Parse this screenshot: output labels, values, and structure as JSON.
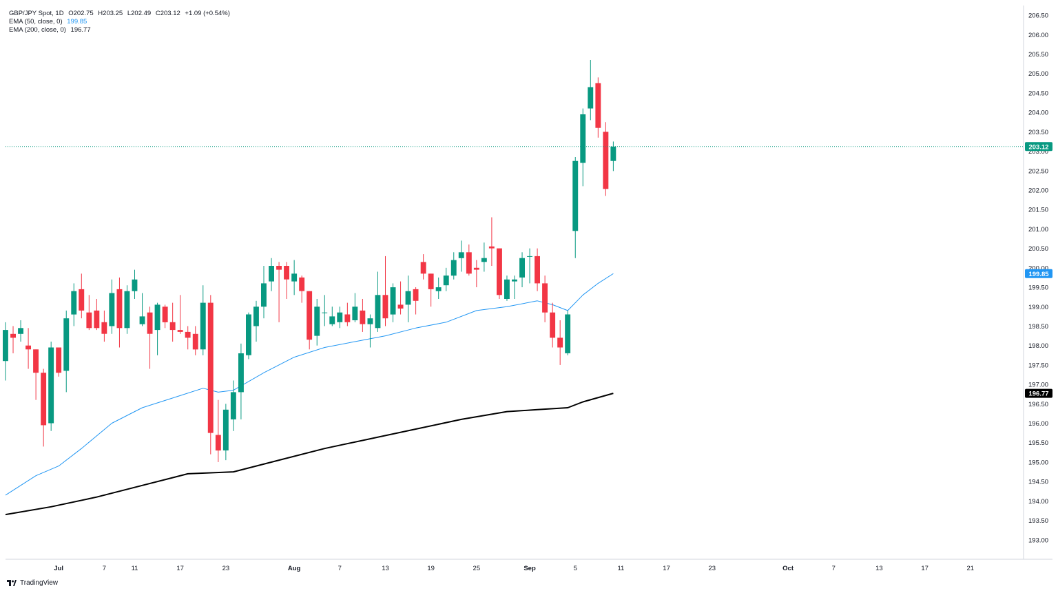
{
  "legend": {
    "symbol": "GBP/JPY Spot, 1D",
    "open": "O202.75",
    "high": "H203.25",
    "low": "L202.49",
    "close": "C203.12",
    "change": "+1.09 (+0.54%)",
    "ema50_label": "EMA (50, close, 0)",
    "ema50_value": "199.85",
    "ema200_label": "EMA (200, close, 0)",
    "ema200_value": "196.77"
  },
  "brand": {
    "name": "TradingView",
    "icon": "tradingview-logo-icon"
  },
  "colors": {
    "up": "#089981",
    "down": "#f23645",
    "ema50": "#2196f3",
    "ema200": "#000000",
    "price_line": "#089981",
    "axis_text": "#131722",
    "grid": "#f0f3fa"
  },
  "chart_data": {
    "type": "candlestick",
    "title": "GBP/JPY Spot, 1D",
    "ylim": [
      192.5,
      206.75
    ],
    "y_ticks": [
      "193.00",
      "193.50",
      "194.00",
      "194.50",
      "195.00",
      "195.50",
      "196.00",
      "196.50",
      "197.00",
      "197.50",
      "198.00",
      "198.50",
      "199.00",
      "199.50",
      "200.00",
      "200.50",
      "201.00",
      "201.50",
      "202.00",
      "202.50",
      "203.00",
      "203.50",
      "204.00",
      "204.50",
      "205.00",
      "205.50",
      "206.00",
      "206.50"
    ],
    "x_ticks": [
      {
        "label": "Jul",
        "day": -5,
        "bold": true
      },
      {
        "label": "7",
        "day": 1
      },
      {
        "label": "11",
        "day": 5
      },
      {
        "label": "17",
        "day": 11
      },
      {
        "label": "23",
        "day": 17
      },
      {
        "label": "Aug",
        "day": 26,
        "bold": true
      },
      {
        "label": "7",
        "day": 32
      },
      {
        "label": "13",
        "day": 38
      },
      {
        "label": "19",
        "day": 44
      },
      {
        "label": "25",
        "day": 50
      },
      {
        "label": "Sep",
        "day": 57,
        "bold": true
      },
      {
        "label": "5",
        "day": 63
      },
      {
        "label": "11",
        "day": 69
      },
      {
        "label": "17",
        "day": 75
      },
      {
        "label": "23",
        "day": 81
      },
      {
        "label": "Oct",
        "day": 91,
        "bold": true
      },
      {
        "label": "7",
        "day": 97
      },
      {
        "label": "13",
        "day": 103
      },
      {
        "label": "17",
        "day": 109
      },
      {
        "label": "21",
        "day": 115
      }
    ],
    "x_range_days": [
      -12,
      122
    ],
    "last_price": "203.12",
    "ema50_last": "199.85",
    "ema200_last": "196.77",
    "candles": [
      {
        "d": -12,
        "o": 197.6,
        "h": 198.6,
        "l": 197.1,
        "c": 198.4
      },
      {
        "d": -11,
        "o": 198.3,
        "h": 198.5,
        "l": 197.8,
        "c": 198.2
      },
      {
        "d": -10,
        "o": 198.3,
        "h": 198.65,
        "l": 198.1,
        "c": 198.45
      },
      {
        "d": -9,
        "o": 198.0,
        "h": 198.45,
        "l": 197.4,
        "c": 197.9
      },
      {
        "d": -8,
        "o": 197.9,
        "h": 197.9,
        "l": 196.6,
        "c": 197.3
      },
      {
        "d": -7,
        "o": 197.3,
        "h": 197.4,
        "l": 195.4,
        "c": 195.95
      },
      {
        "d": -6,
        "o": 196.0,
        "h": 198.1,
        "l": 195.8,
        "c": 197.95
      },
      {
        "d": -5,
        "o": 197.95,
        "h": 197.95,
        "l": 197.2,
        "c": 197.3
      },
      {
        "d": -4,
        "o": 197.35,
        "h": 198.9,
        "l": 196.8,
        "c": 198.7
      },
      {
        "d": -3,
        "o": 198.8,
        "h": 199.6,
        "l": 198.5,
        "c": 199.4
      },
      {
        "d": -2,
        "o": 199.45,
        "h": 199.85,
        "l": 198.7,
        "c": 198.9
      },
      {
        "d": -1,
        "o": 198.85,
        "h": 199.3,
        "l": 198.4,
        "c": 198.45
      },
      {
        "d": 0,
        "o": 198.9,
        "h": 199.2,
        "l": 198.4,
        "c": 198.45
      },
      {
        "d": 1,
        "o": 198.6,
        "h": 198.9,
        "l": 198.1,
        "c": 198.3
      },
      {
        "d": 2,
        "o": 198.5,
        "h": 199.7,
        "l": 198.3,
        "c": 199.35
      },
      {
        "d": 3,
        "o": 199.45,
        "h": 199.75,
        "l": 197.95,
        "c": 198.45
      },
      {
        "d": 4,
        "o": 198.45,
        "h": 199.55,
        "l": 198.3,
        "c": 199.4
      },
      {
        "d": 5,
        "o": 199.4,
        "h": 199.95,
        "l": 199.2,
        "c": 199.7
      },
      {
        "d": 6,
        "o": 198.55,
        "h": 199.35,
        "l": 198.5,
        "c": 198.75
      },
      {
        "d": 7,
        "o": 198.85,
        "h": 199.0,
        "l": 197.4,
        "c": 198.3
      },
      {
        "d": 8,
        "o": 198.4,
        "h": 199.1,
        "l": 197.75,
        "c": 199.05
      },
      {
        "d": 9,
        "o": 199.0,
        "h": 199.05,
        "l": 198.45,
        "c": 198.6
      },
      {
        "d": 10,
        "o": 198.6,
        "h": 199.1,
        "l": 198.1,
        "c": 198.4
      },
      {
        "d": 11,
        "o": 198.4,
        "h": 199.3,
        "l": 198.3,
        "c": 198.35
      },
      {
        "d": 12,
        "o": 198.35,
        "h": 198.5,
        "l": 197.9,
        "c": 198.2
      },
      {
        "d": 13,
        "o": 198.3,
        "h": 198.5,
        "l": 197.75,
        "c": 197.9
      },
      {
        "d": 14,
        "o": 197.9,
        "h": 199.55,
        "l": 197.75,
        "c": 199.1
      },
      {
        "d": 15,
        "o": 199.1,
        "h": 199.3,
        "l": 195.2,
        "c": 195.75
      },
      {
        "d": 16,
        "o": 195.7,
        "h": 196.6,
        "l": 195.0,
        "c": 195.3
      },
      {
        "d": 17,
        "o": 195.3,
        "h": 196.5,
        "l": 195.05,
        "c": 196.35
      },
      {
        "d": 18,
        "o": 196.1,
        "h": 197.1,
        "l": 195.8,
        "c": 196.8
      },
      {
        "d": 19,
        "o": 196.8,
        "h": 198.05,
        "l": 196.1,
        "c": 197.8
      },
      {
        "d": 20,
        "o": 197.75,
        "h": 198.85,
        "l": 197.65,
        "c": 198.8
      },
      {
        "d": 21,
        "o": 198.5,
        "h": 199.15,
        "l": 198.1,
        "c": 199.0
      },
      {
        "d": 22,
        "o": 199.0,
        "h": 200.05,
        "l": 198.7,
        "c": 199.6
      },
      {
        "d": 23,
        "o": 199.65,
        "h": 200.25,
        "l": 199.4,
        "c": 200.05
      },
      {
        "d": 24,
        "o": 200.05,
        "h": 200.15,
        "l": 198.6,
        "c": 199.95
      },
      {
        "d": 25,
        "o": 200.05,
        "h": 200.15,
        "l": 199.2,
        "c": 199.7
      },
      {
        "d": 26,
        "o": 199.65,
        "h": 200.2,
        "l": 199.3,
        "c": 199.85
      },
      {
        "d": 27,
        "o": 199.75,
        "h": 199.8,
        "l": 199.1,
        "c": 199.4
      },
      {
        "d": 28,
        "o": 199.4,
        "h": 199.4,
        "l": 197.9,
        "c": 198.15
      },
      {
        "d": 29,
        "o": 198.25,
        "h": 199.2,
        "l": 198.0,
        "c": 199.0
      },
      {
        "d": 30,
        "o": 198.85,
        "h": 199.3,
        "l": 198.5,
        "c": 198.85
      },
      {
        "d": 31,
        "o": 198.55,
        "h": 199.0,
        "l": 198.5,
        "c": 198.75
      },
      {
        "d": 32,
        "o": 198.6,
        "h": 199.0,
        "l": 198.45,
        "c": 198.85
      },
      {
        "d": 33,
        "o": 198.8,
        "h": 199.1,
        "l": 198.5,
        "c": 198.6
      },
      {
        "d": 34,
        "o": 198.65,
        "h": 199.35,
        "l": 198.6,
        "c": 199.0
      },
      {
        "d": 35,
        "o": 198.9,
        "h": 199.2,
        "l": 198.35,
        "c": 198.55
      },
      {
        "d": 36,
        "o": 198.55,
        "h": 198.8,
        "l": 197.95,
        "c": 198.7
      },
      {
        "d": 37,
        "o": 198.45,
        "h": 199.9,
        "l": 198.35,
        "c": 199.3
      },
      {
        "d": 38,
        "o": 199.3,
        "h": 200.3,
        "l": 198.5,
        "c": 198.7
      },
      {
        "d": 39,
        "o": 198.8,
        "h": 199.6,
        "l": 198.6,
        "c": 199.5
      },
      {
        "d": 40,
        "o": 199.05,
        "h": 199.65,
        "l": 198.8,
        "c": 198.95
      },
      {
        "d": 41,
        "o": 199.05,
        "h": 199.8,
        "l": 198.6,
        "c": 199.4
      },
      {
        "d": 42,
        "o": 199.45,
        "h": 199.5,
        "l": 198.8,
        "c": 199.15
      },
      {
        "d": 43,
        "o": 200.15,
        "h": 200.35,
        "l": 199.7,
        "c": 199.85
      },
      {
        "d": 44,
        "o": 199.85,
        "h": 199.85,
        "l": 199.0,
        "c": 199.45
      },
      {
        "d": 45,
        "o": 199.4,
        "h": 199.75,
        "l": 199.2,
        "c": 199.5
      },
      {
        "d": 46,
        "o": 199.55,
        "h": 200.0,
        "l": 199.4,
        "c": 199.8
      },
      {
        "d": 47,
        "o": 199.8,
        "h": 200.4,
        "l": 199.7,
        "c": 200.2
      },
      {
        "d": 48,
        "o": 200.25,
        "h": 200.7,
        "l": 199.9,
        "c": 200.4
      },
      {
        "d": 49,
        "o": 200.4,
        "h": 200.6,
        "l": 199.8,
        "c": 199.85
      },
      {
        "d": 50,
        "o": 200.0,
        "h": 200.2,
        "l": 199.5,
        "c": 199.95
      },
      {
        "d": 51,
        "o": 200.15,
        "h": 200.65,
        "l": 199.9,
        "c": 200.25
      },
      {
        "d": 52,
        "o": 200.55,
        "h": 201.3,
        "l": 200.05,
        "c": 200.5
      },
      {
        "d": 53,
        "o": 200.5,
        "h": 200.5,
        "l": 199.2,
        "c": 199.3
      },
      {
        "d": 54,
        "o": 199.2,
        "h": 199.8,
        "l": 199.15,
        "c": 199.7
      },
      {
        "d": 55,
        "o": 199.65,
        "h": 199.8,
        "l": 199.2,
        "c": 199.7
      },
      {
        "d": 56,
        "o": 199.75,
        "h": 200.4,
        "l": 199.5,
        "c": 200.25
      },
      {
        "d": 57,
        "o": 200.3,
        "h": 200.5,
        "l": 199.6,
        "c": 200.3
      },
      {
        "d": 58,
        "o": 200.3,
        "h": 200.5,
        "l": 199.4,
        "c": 199.6
      },
      {
        "d": 59,
        "o": 199.6,
        "h": 199.8,
        "l": 198.6,
        "c": 198.85
      },
      {
        "d": 60,
        "o": 198.85,
        "h": 199.1,
        "l": 197.95,
        "c": 198.2
      },
      {
        "d": 61,
        "o": 198.2,
        "h": 198.65,
        "l": 197.5,
        "c": 197.95
      },
      {
        "d": 62,
        "o": 197.8,
        "h": 198.9,
        "l": 197.75,
        "c": 198.8
      },
      {
        "d": 63,
        "o": 200.95,
        "h": 202.85,
        "l": 200.25,
        "c": 202.75
      },
      {
        "d": 64,
        "o": 202.7,
        "h": 204.1,
        "l": 202.1,
        "c": 203.95
      },
      {
        "d": 65,
        "o": 204.1,
        "h": 205.35,
        "l": 203.8,
        "c": 204.65
      },
      {
        "d": 66,
        "o": 204.75,
        "h": 204.9,
        "l": 203.35,
        "c": 203.6
      },
      {
        "d": 67,
        "o": 203.5,
        "h": 203.75,
        "l": 201.85,
        "c": 202.03
      },
      {
        "d": 68,
        "o": 202.75,
        "h": 203.25,
        "l": 202.49,
        "c": 203.12
      }
    ],
    "ema50": [
      [
        -12,
        194.15
      ],
      [
        -8,
        194.65
      ],
      [
        -5,
        194.9
      ],
      [
        -2,
        195.35
      ],
      [
        2,
        196.0
      ],
      [
        6,
        196.4
      ],
      [
        10,
        196.65
      ],
      [
        14,
        196.9
      ],
      [
        16,
        196.8
      ],
      [
        18,
        196.85
      ],
      [
        22,
        197.3
      ],
      [
        26,
        197.7
      ],
      [
        30,
        197.95
      ],
      [
        34,
        198.1
      ],
      [
        38,
        198.25
      ],
      [
        42,
        198.45
      ],
      [
        46,
        198.6
      ],
      [
        50,
        198.9
      ],
      [
        54,
        199.0
      ],
      [
        58,
        199.15
      ],
      [
        60,
        199.05
      ],
      [
        62,
        198.9
      ],
      [
        64,
        199.3
      ],
      [
        66,
        199.6
      ],
      [
        68,
        199.85
      ]
    ],
    "ema200": [
      [
        -12,
        193.65
      ],
      [
        -6,
        193.85
      ],
      [
        0,
        194.1
      ],
      [
        6,
        194.4
      ],
      [
        12,
        194.7
      ],
      [
        18,
        194.75
      ],
      [
        24,
        195.05
      ],
      [
        30,
        195.35
      ],
      [
        36,
        195.6
      ],
      [
        42,
        195.85
      ],
      [
        48,
        196.1
      ],
      [
        54,
        196.3
      ],
      [
        58,
        196.35
      ],
      [
        62,
        196.4
      ],
      [
        64,
        196.55
      ],
      [
        68,
        196.77
      ]
    ]
  }
}
